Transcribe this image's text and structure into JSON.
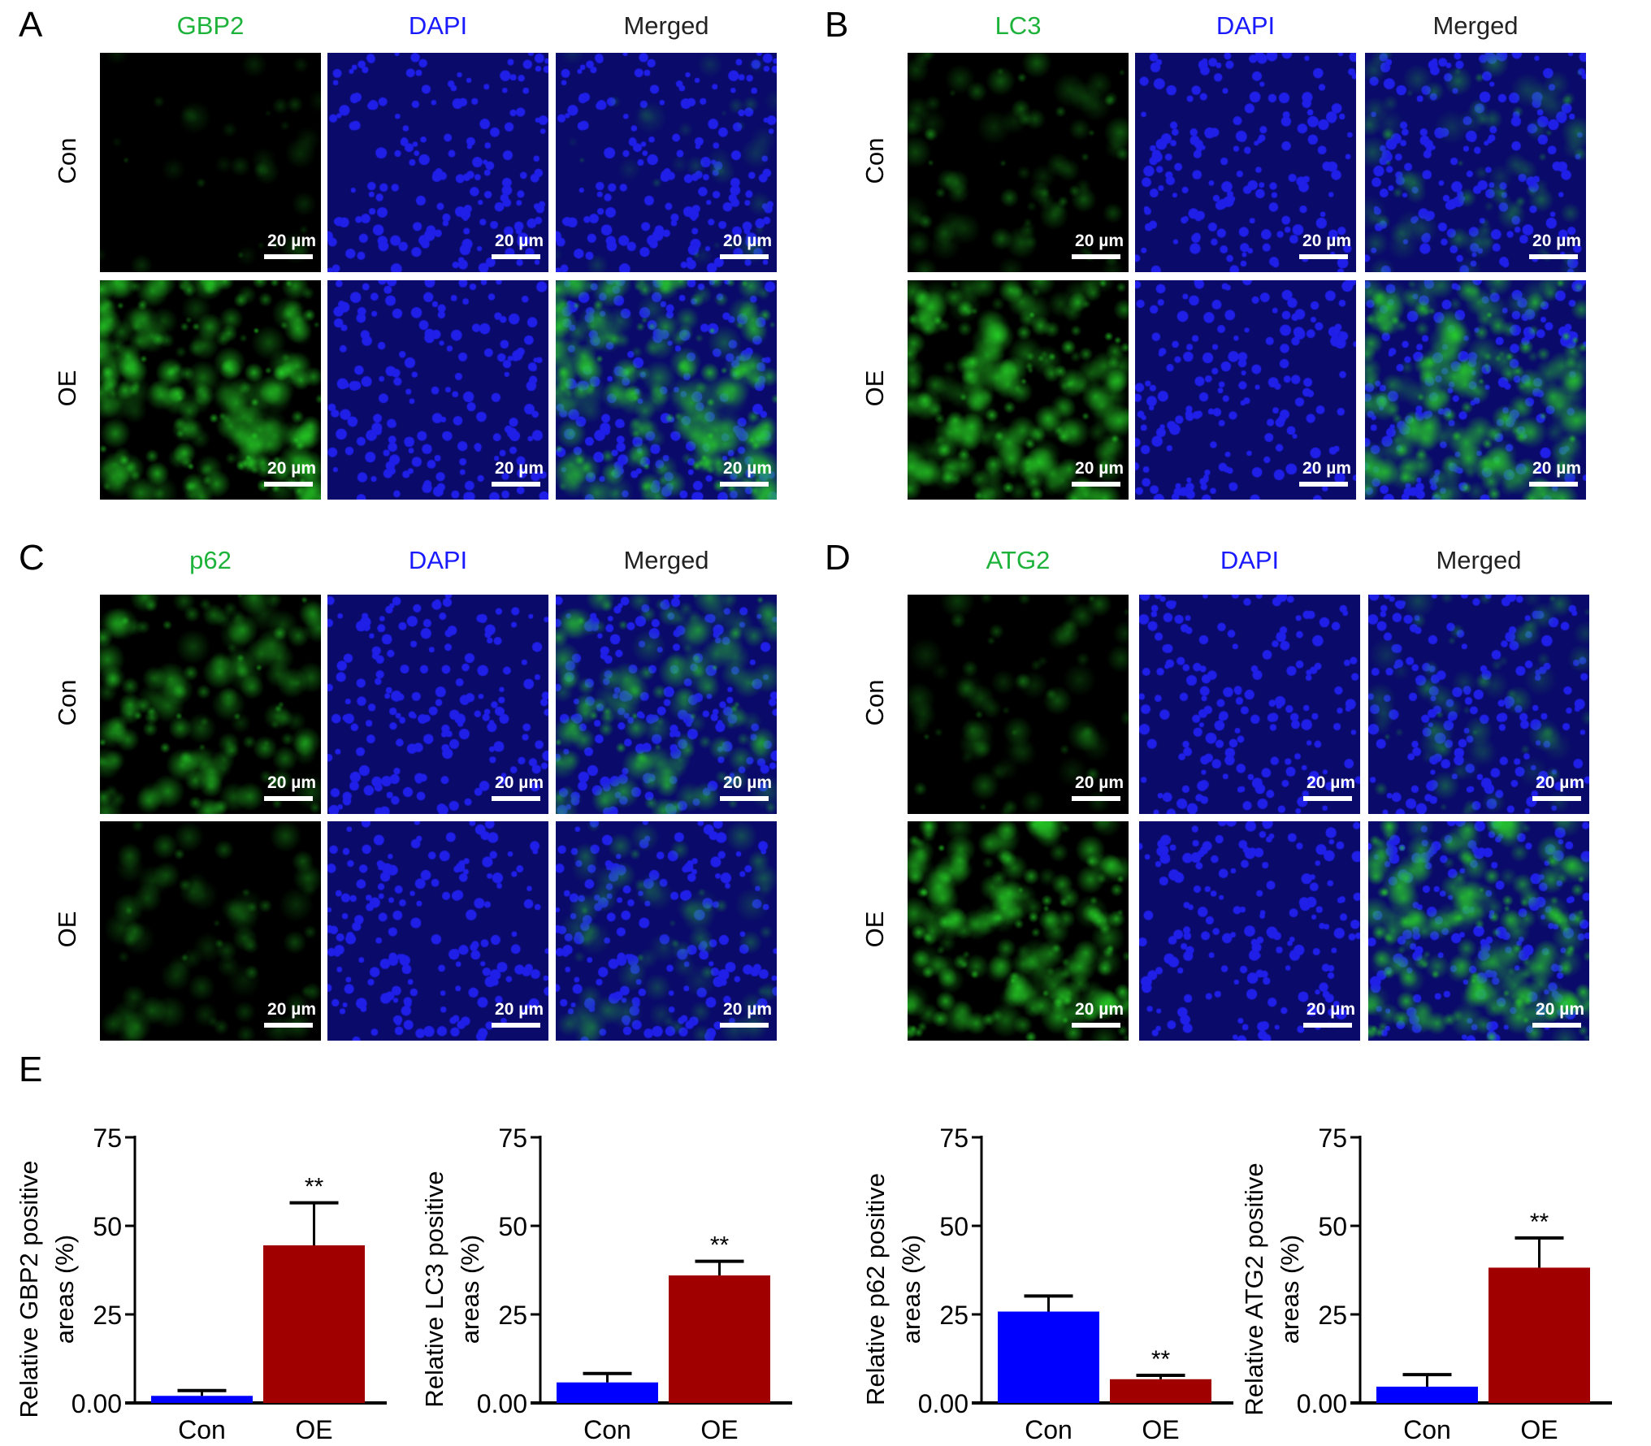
{
  "panels": [
    {
      "letter": "A",
      "headers": [
        "GBP2",
        "DAPI",
        "Merged"
      ],
      "rows": [
        "Con",
        "OE"
      ],
      "scale_bar": "20 µm"
    },
    {
      "letter": "B",
      "headers": [
        "LC3",
        "DAPI",
        "Merged"
      ],
      "rows": [
        "Con",
        "OE"
      ],
      "scale_bar": "20 µm"
    },
    {
      "letter": "C",
      "headers": [
        "p62",
        "DAPI",
        "Merged"
      ],
      "rows": [
        "Con",
        "OE"
      ],
      "scale_bar": "20 µm"
    },
    {
      "letter": "D",
      "headers": [
        "ATG2",
        "DAPI",
        "Merged"
      ],
      "rows": [
        "Con",
        "OE"
      ],
      "scale_bar": "20 µm"
    }
  ],
  "colors": {
    "marker": "#1db33a",
    "dapi": "#1a1aff",
    "merged": "#222222",
    "con_bar": "#0000ff",
    "oe_bar": "#a00000"
  },
  "panel_e_letter": "E",
  "chart_data": [
    {
      "type": "bar",
      "categories": [
        "Con",
        "OE"
      ],
      "values": [
        2.0,
        44.5
      ],
      "errors": [
        1.5,
        12.0
      ],
      "significance": [
        "",
        "**"
      ],
      "ylabel": [
        "Relative GBP2 positive",
        "areas (%)"
      ],
      "yticks": [
        "0.00",
        "25",
        "50",
        "75"
      ],
      "ylim": [
        0,
        75
      ]
    },
    {
      "type": "bar",
      "categories": [
        "Con",
        "OE"
      ],
      "values": [
        5.8,
        36.0
      ],
      "errors": [
        2.5,
        4.0
      ],
      "significance": [
        "",
        "**"
      ],
      "ylabel": [
        "Relative LC3 positive",
        "areas (%)"
      ],
      "yticks": [
        "0.00",
        "25",
        "50",
        "75"
      ],
      "ylim": [
        0,
        75
      ]
    },
    {
      "type": "bar",
      "categories": [
        "Con",
        "OE"
      ],
      "values": [
        25.8,
        6.7
      ],
      "errors": [
        4.4,
        1.1
      ],
      "significance": [
        "",
        "**"
      ],
      "ylabel": [
        "Relative p62 positive",
        "areas (%)"
      ],
      "yticks": [
        "0.00",
        "25",
        "50",
        "75"
      ],
      "ylim": [
        0,
        75
      ]
    },
    {
      "type": "bar",
      "categories": [
        "Con",
        "OE"
      ],
      "values": [
        4.6,
        38.2
      ],
      "errors": [
        3.4,
        8.4
      ],
      "significance": [
        "",
        "**"
      ],
      "ylabel": [
        "Relative ATG2 positive",
        "areas (%)"
      ],
      "yticks": [
        "0.00",
        "25",
        "50",
        "75"
      ],
      "ylim": [
        0,
        75
      ]
    }
  ]
}
